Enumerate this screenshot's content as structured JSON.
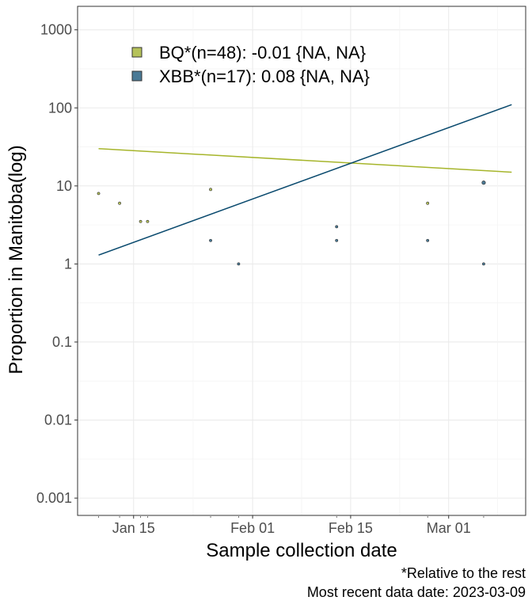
{
  "chart_data": {
    "type": "scatter",
    "xlabel": "Sample collection date",
    "ylabel": "Proportion in Manitoba(log)",
    "y_scale": "log10",
    "ylim": [
      0.0006,
      2000
    ],
    "xlim": [
      "2023-01-07",
      "2023-03-12"
    ],
    "x_ticks": [
      {
        "date": "2023-01-15",
        "label": "Jan 15"
      },
      {
        "date": "2023-02-01",
        "label": "Feb 01"
      },
      {
        "date": "2023-02-15",
        "label": "Feb 15"
      },
      {
        "date": "2023-03-01",
        "label": "Mar 01"
      }
    ],
    "y_ticks": [
      {
        "value": 0.001,
        "label": "0.001"
      },
      {
        "value": 0.01,
        "label": "0.01"
      },
      {
        "value": 0.1,
        "label": "0.1"
      },
      {
        "value": 1,
        "label": "1"
      },
      {
        "value": 10,
        "label": "10"
      },
      {
        "value": 100,
        "label": "100"
      },
      {
        "value": 1000,
        "label": "1000"
      }
    ],
    "grid": true,
    "legend_position": "top-left",
    "series": [
      {
        "name": "BQ*(n=48): -0.01 {NA, NA}",
        "color": "#a6b52b",
        "fill": "#b5c25a",
        "points": [
          {
            "x": "2023-01-10",
            "y": 8
          },
          {
            "x": "2023-01-13",
            "y": 6
          },
          {
            "x": "2023-01-16",
            "y": 3.5
          },
          {
            "x": "2023-01-17",
            "y": 3.5
          },
          {
            "x": "2023-01-26",
            "y": 9
          },
          {
            "x": "2023-02-26",
            "y": 6
          },
          {
            "x": "2023-03-06",
            "y": 11
          }
        ],
        "fit_line": [
          {
            "x": "2023-01-10",
            "y": 30
          },
          {
            "x": "2023-03-10",
            "y": 15
          }
        ]
      },
      {
        "name": "XBB*(n=17): 0.08 {NA, NA}",
        "color": "#0a4a6e",
        "fill": "#4a7a96",
        "points": [
          {
            "x": "2023-01-26",
            "y": 2
          },
          {
            "x": "2023-01-30",
            "y": 1
          },
          {
            "x": "2023-02-13",
            "y": 3
          },
          {
            "x": "2023-02-13",
            "y": 2
          },
          {
            "x": "2023-02-26",
            "y": 2
          },
          {
            "x": "2023-03-06",
            "y": 1
          },
          {
            "x": "2023-03-06",
            "y": 11
          }
        ],
        "fit_line": [
          {
            "x": "2023-01-10",
            "y": 1.3
          },
          {
            "x": "2023-03-10",
            "y": 110
          }
        ]
      }
    ],
    "caption_lines": [
      "*Relative to the rest",
      "Most recent data date: 2023-03-09"
    ]
  }
}
